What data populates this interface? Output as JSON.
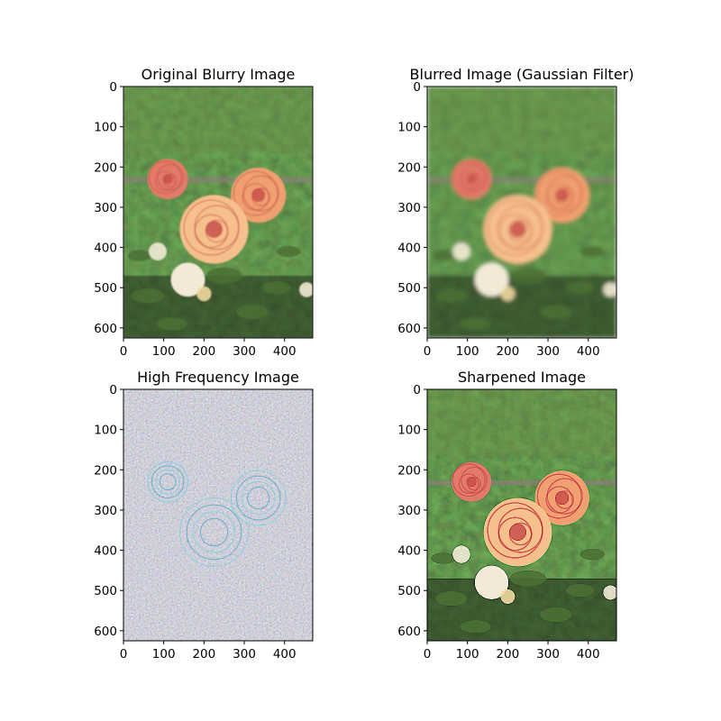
{
  "figure": {
    "panels": [
      {
        "id": "original",
        "title": "Original Blurry Image",
        "style": "photo-soft",
        "x_ticks": [
          "0",
          "100",
          "200",
          "300",
          "400"
        ],
        "y_ticks": [
          "0",
          "100",
          "200",
          "300",
          "400",
          "500",
          "600"
        ]
      },
      {
        "id": "blurred",
        "title": "Blurred Image (Gaussian Filter)",
        "style": "photo-blur",
        "x_ticks": [
          "0",
          "100",
          "200",
          "300",
          "400"
        ],
        "y_ticks": [
          "0",
          "100",
          "200",
          "300",
          "400",
          "500",
          "600"
        ]
      },
      {
        "id": "highfreq",
        "title": "High Frequency Image",
        "style": "highfreq",
        "x_ticks": [
          "0",
          "100",
          "200",
          "300",
          "400"
        ],
        "y_ticks": [
          "0",
          "100",
          "200",
          "300",
          "400",
          "500",
          "600"
        ]
      },
      {
        "id": "sharpened",
        "title": "Sharpened Image",
        "style": "photo-sharp",
        "x_ticks": [
          "0",
          "100",
          "200",
          "300",
          "400"
        ],
        "y_ticks": [
          "0",
          "100",
          "200",
          "300",
          "400",
          "500",
          "600"
        ]
      }
    ]
  },
  "colors": {
    "background": "#ffffff",
    "foliage_dark": "#1f2a17",
    "foliage": "#3d5a2a",
    "foliage_light": "#6f8f4a",
    "rose_orange": "#f0a070",
    "rose_peach": "#f6c08c",
    "rose_center": "#c8504a",
    "rose_pink": "#e27a68",
    "white_rose": "#f2ead6",
    "highfreq_bg": "#8c8c8c"
  }
}
